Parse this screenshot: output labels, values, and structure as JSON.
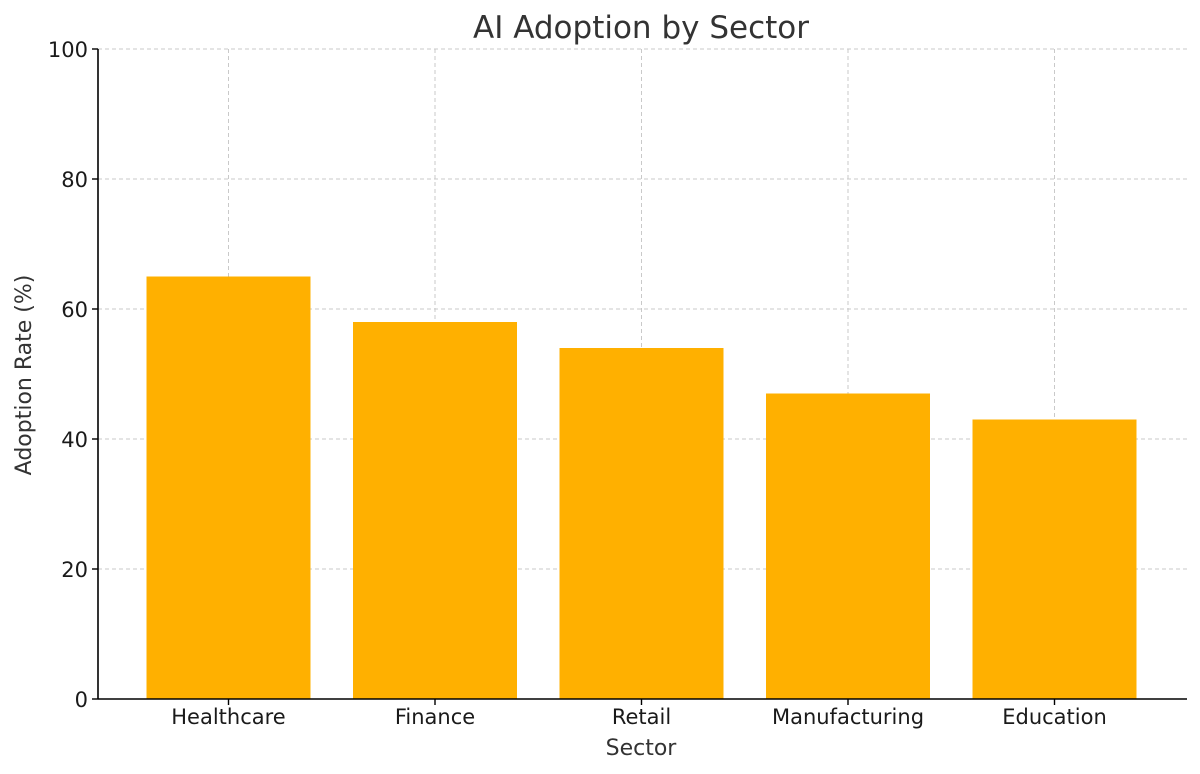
{
  "chart_data": {
    "type": "bar",
    "title": "AI Adoption by Sector",
    "xlabel": "Sector",
    "ylabel": "Adoption Rate (%)",
    "categories": [
      "Healthcare",
      "Finance",
      "Retail",
      "Manufacturing",
      "Education"
    ],
    "values": [
      65,
      58,
      54,
      47,
      43
    ],
    "ylim": [
      0,
      100
    ],
    "yticks": [
      0,
      20,
      40,
      60,
      80,
      100
    ],
    "grid": true,
    "colors": {
      "bar": "#FFB000"
    }
  }
}
